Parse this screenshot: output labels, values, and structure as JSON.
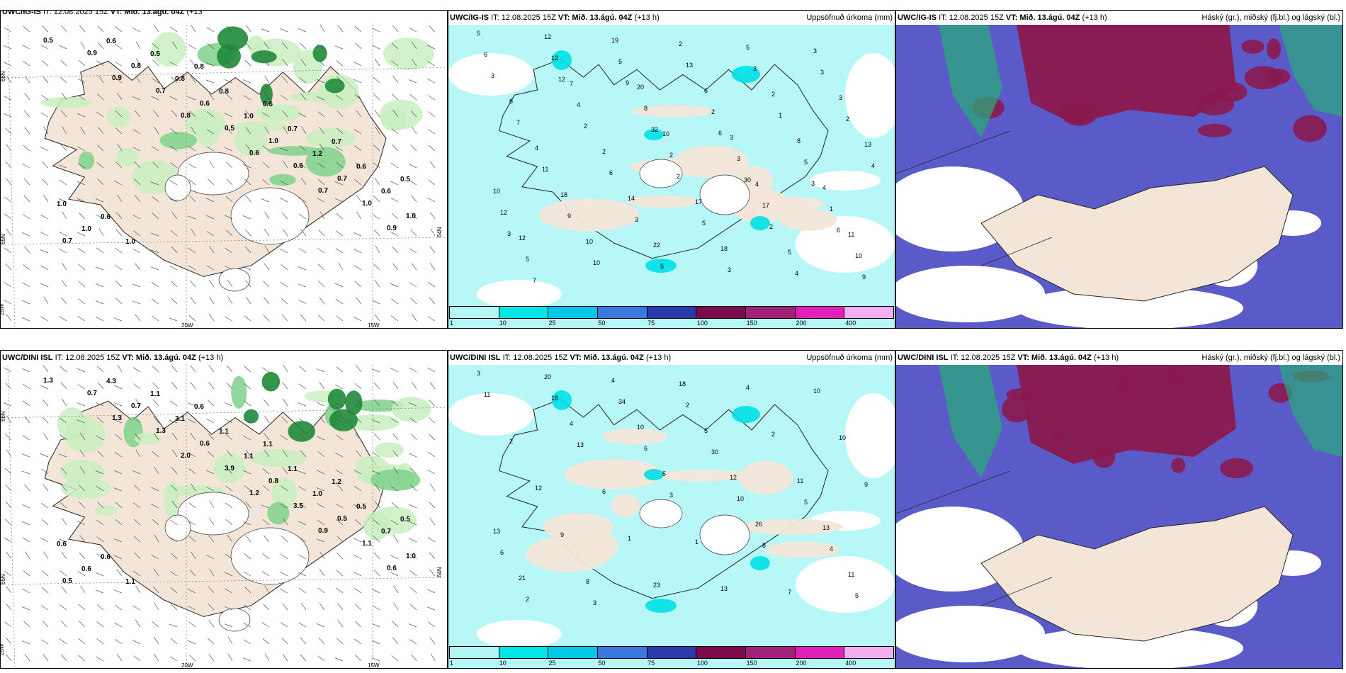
{
  "panels": {
    "p1": {
      "model": "UWC/IG-IS",
      "it": "IT: 12.08.2025 15Z",
      "vt": "VT: Mið. 13.ágú. 04Z",
      "lead": "(+13",
      "lead2": "h)",
      "values": [
        "0.5",
        "0.9",
        "0.8",
        "0.6",
        "0.7",
        "0.9",
        "0.9",
        "0.7",
        "0.5",
        "0.6",
        "1.0",
        "0.7",
        "0.8",
        "0.6",
        "1.0",
        "0.7",
        "1.0",
        "0.6",
        "0.8",
        "1.0",
        "1.2",
        "0.6",
        "1.0",
        "0.5",
        "0.8",
        "0.7",
        "0.6",
        "1.0",
        "1.0",
        "0.8",
        "0.6",
        "0.7",
        "0.5",
        "0.6"
      ],
      "axes": [
        "66N",
        "65N",
        "64N",
        "25W",
        "20W",
        "15W"
      ]
    },
    "p2": {
      "model": "UWC/IG-IS",
      "it": "IT: 12.08.2025 15Z",
      "vt": "VT: Mið. 13.ágú. 04Z",
      "lead": "(+13 h)",
      "right": "Uppsöfnuð úrkoma (mm)",
      "values": [
        "5",
        "7",
        "10",
        "4",
        "11",
        "12",
        "20",
        "3",
        "4",
        "12",
        "19",
        "6",
        "8",
        "10",
        "10",
        "2",
        "2",
        "13",
        "18",
        "22",
        "5",
        "3",
        "4",
        "14",
        "18",
        "3",
        "8",
        "2",
        "17",
        "5",
        "6",
        "4",
        "2",
        "17",
        "10",
        "12",
        "8",
        "3",
        "1",
        "5",
        "5",
        "2",
        "5",
        "12",
        "10",
        "13",
        "1",
        "4",
        "9",
        "5",
        "3",
        "2",
        "11",
        "3",
        "3",
        "3",
        "7",
        "6",
        "5",
        "4",
        "3",
        "2",
        "2",
        "2",
        "9",
        "12",
        "32",
        "30",
        "6",
        "7",
        "9",
        "6",
        "3",
        "3"
      ]
    },
    "p3": {
      "model": "UWC/IG-IS",
      "it": "IT: 12.08.2025 15Z",
      "vt": "VT: Mið. 13.ágú. 04Z",
      "lead": "(+13 h)",
      "right": "Háský (gr.), miðský (fj.bl.) og lágský (bl.)"
    },
    "p4": {
      "model": "UWC/DINI ISL",
      "it": "IT: 12.08.2025 15Z",
      "vt": "VT: Mið. 13.ágú. 04Z",
      "lead": "(+13 h)",
      "values": [
        "1.3",
        "1.3",
        "2.0",
        "1.2",
        "0.9",
        "0.6",
        "0.7",
        "1.3",
        "3.9",
        "3.5",
        "1.1",
        "0.5",
        "0.7",
        "0.6",
        "0.8",
        "0.5",
        "1.0",
        "4.3",
        "3.1",
        "1.1",
        "1.0",
        "0.7",
        "0.6",
        "1.1",
        "1.1",
        "1.1",
        "0.5",
        "0.6",
        "1.1",
        "0.6",
        "1.1",
        "1.2",
        "0.5",
        "0.6"
      ],
      "axes": [
        "66N",
        "65N",
        "64N",
        "25W",
        "20W",
        "15W"
      ]
    },
    "p5": {
      "model": "UWC/DINI ISL",
      "it": "IT: 12.08.2025 15Z",
      "vt": "VT: Mið. 13.ágú. 04Z",
      "lead": "(+13 h)",
      "right": "Uppsöfnuð úrkoma (mm)",
      "values": [
        "3",
        "4",
        "5",
        "26",
        "11",
        "20",
        "10",
        "12",
        "13",
        "21",
        "4",
        "5",
        "11",
        "13",
        "8",
        "18",
        "2",
        "9",
        "9",
        "23",
        "4",
        "10",
        "12",
        "1",
        "13",
        "10",
        "2",
        "6",
        "1",
        "7",
        "11",
        "13",
        "3",
        "8",
        "5",
        "18",
        "6",
        "10",
        "4",
        "2",
        "34",
        "30",
        "5",
        "6",
        "3",
        "2"
      ]
    },
    "p6": {
      "model": "UWC/DINI ISL",
      "it": "IT: 12.08.2025 15Z",
      "vt": "VT: Mið. 13.ágú. 04Z",
      "lead": "(+13 h)",
      "right": "Háský (gr.), miðský (fj.bl.) og lágský (bl.)"
    }
  },
  "colorbar": {
    "labels": [
      "1",
      "10",
      "25",
      "50",
      "75",
      "100",
      "150",
      "200",
      "400"
    ],
    "colors": [
      "#b3f6f6",
      "#00e5e5",
      "#00c8e6",
      "#3a78e0",
      "#2a3aa8",
      "#7a0a4a",
      "#a0207a",
      "#e020b8",
      "#f2aef0"
    ]
  },
  "colors": {
    "land": "#f3e6d8",
    "green_light": "#c8efc0",
    "green_mid": "#7fd18c",
    "green_dark": "#1f8a3a",
    "sea_precip": "#b8f7f7",
    "cloud_low": "#5a5ac8",
    "cloud_high": "#8a1a4e",
    "cloud_mid": "#2aa87a"
  }
}
